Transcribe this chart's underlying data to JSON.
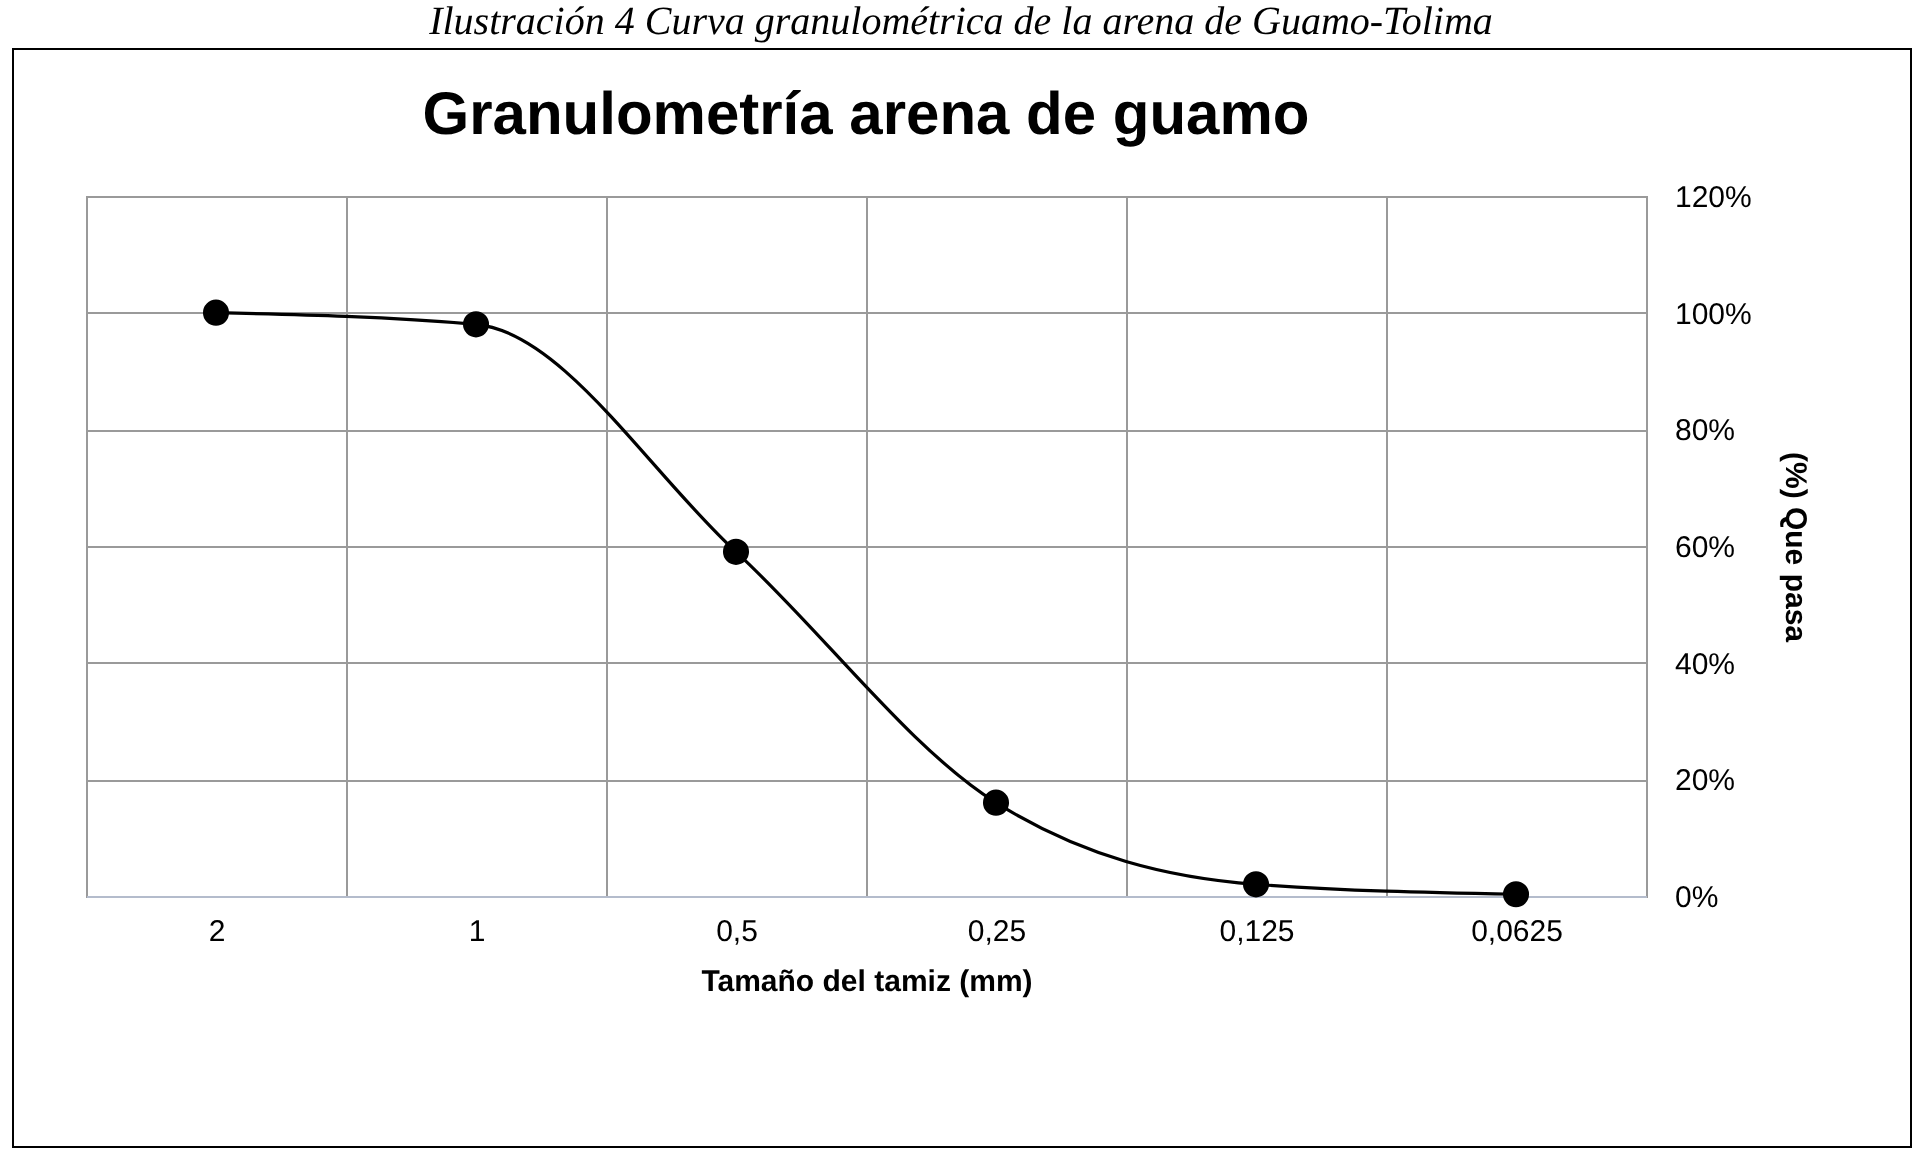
{
  "chart_data": {
    "type": "line",
    "title": "Granulometría arena de guamo",
    "xlabel": "Tamaño del tamiz (mm)",
    "ylabel": "(%) Que pasa",
    "annotations": [
      "Ilustración 4 Curva granulométrica de la arena de Guamo-Tolima"
    ],
    "categories": [
      "2",
      "1",
      "0,5",
      "0,25",
      "0,125",
      "0,0625"
    ],
    "series": [
      {
        "color": "#000000",
        "values": [
          100,
          98,
          59,
          16,
          2,
          0.3
        ]
      }
    ],
    "ylim": [
      0,
      120
    ],
    "yticks": [
      {
        "value": 0,
        "label": "0%"
      },
      {
        "value": 20,
        "label": "20%"
      },
      {
        "value": 40,
        "label": "40%"
      },
      {
        "value": 60,
        "label": "60%"
      },
      {
        "value": 80,
        "label": "80%"
      },
      {
        "value": 100,
        "label": "100%"
      },
      {
        "value": 120,
        "label": "120%"
      }
    ],
    "grid": true,
    "marker": "circle",
    "line_style": "solid"
  }
}
